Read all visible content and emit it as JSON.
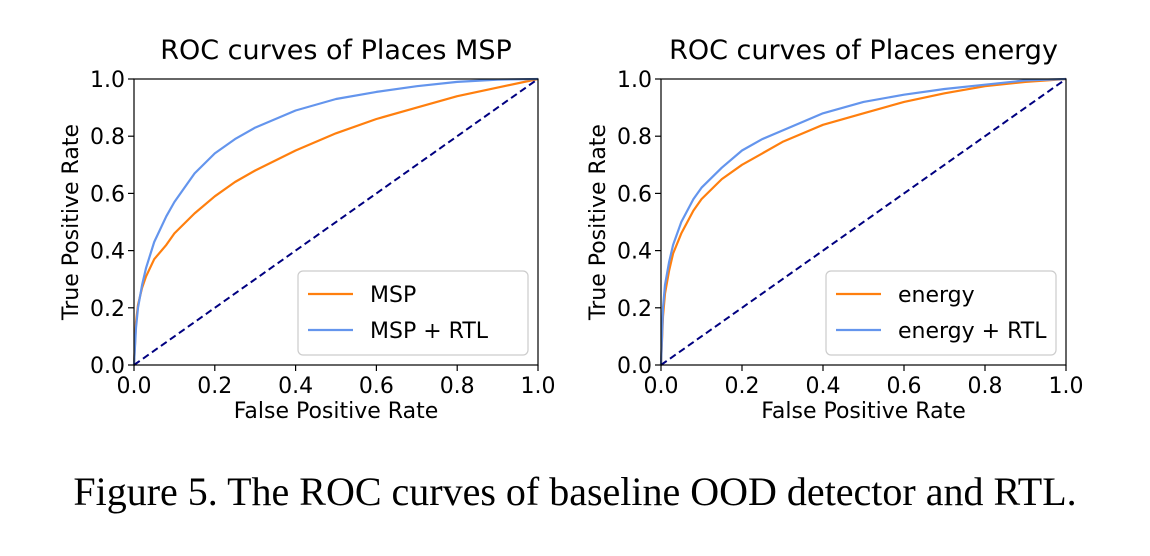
{
  "caption": "Figure 5. The ROC curves of baseline OOD detector and RTL.",
  "chart_data": [
    {
      "type": "line",
      "title": "ROC curves of Places MSP",
      "xlabel": "False Positive Rate",
      "ylabel": "True Positive Rate",
      "xlim": [
        0.0,
        1.0
      ],
      "ylim": [
        0.0,
        1.0
      ],
      "xticks": [
        "0.0",
        "0.2",
        "0.4",
        "0.6",
        "0.8",
        "1.0"
      ],
      "yticks": [
        "0.0",
        "0.2",
        "0.4",
        "0.6",
        "0.8",
        "1.0"
      ],
      "grid": false,
      "legend_position": "lower-right",
      "series": [
        {
          "name": "MSP",
          "color": "#ff7f0e",
          "x": [
            0,
            0.005,
            0.01,
            0.02,
            0.03,
            0.05,
            0.08,
            0.1,
            0.15,
            0.2,
            0.25,
            0.3,
            0.4,
            0.5,
            0.6,
            0.7,
            0.8,
            0.9,
            1.0
          ],
          "y": [
            0,
            0.15,
            0.21,
            0.27,
            0.31,
            0.37,
            0.42,
            0.46,
            0.53,
            0.59,
            0.64,
            0.68,
            0.75,
            0.81,
            0.86,
            0.9,
            0.94,
            0.97,
            1.0
          ]
        },
        {
          "name": "MSP + RTL",
          "color": "#6495ed",
          "x": [
            0,
            0.005,
            0.01,
            0.02,
            0.03,
            0.05,
            0.08,
            0.1,
            0.12,
            0.15,
            0.2,
            0.25,
            0.3,
            0.4,
            0.5,
            0.6,
            0.7,
            0.8,
            0.9,
            1.0
          ],
          "y": [
            0,
            0.13,
            0.2,
            0.28,
            0.34,
            0.43,
            0.52,
            0.57,
            0.61,
            0.67,
            0.74,
            0.79,
            0.83,
            0.89,
            0.93,
            0.955,
            0.975,
            0.99,
            0.998,
            1.0
          ]
        },
        {
          "name": "",
          "color": "#000080",
          "dashed": true,
          "x": [
            0,
            1
          ],
          "y": [
            0,
            1
          ]
        }
      ]
    },
    {
      "type": "line",
      "title": "ROC curves of Places energy",
      "xlabel": "False Positive Rate",
      "ylabel": "True Positive Rate",
      "xlim": [
        0.0,
        1.0
      ],
      "ylim": [
        0.0,
        1.0
      ],
      "xticks": [
        "0.0",
        "0.2",
        "0.4",
        "0.6",
        "0.8",
        "1.0"
      ],
      "yticks": [
        "0.0",
        "0.2",
        "0.4",
        "0.6",
        "0.8",
        "1.0"
      ],
      "grid": false,
      "legend_position": "lower-right",
      "series": [
        {
          "name": "energy",
          "color": "#ff7f0e",
          "x": [
            0,
            0.005,
            0.01,
            0.02,
            0.03,
            0.05,
            0.08,
            0.1,
            0.15,
            0.2,
            0.25,
            0.3,
            0.4,
            0.5,
            0.6,
            0.7,
            0.8,
            0.9,
            1.0
          ],
          "y": [
            0,
            0.17,
            0.25,
            0.33,
            0.39,
            0.46,
            0.54,
            0.58,
            0.65,
            0.7,
            0.74,
            0.78,
            0.84,
            0.88,
            0.92,
            0.95,
            0.975,
            0.99,
            1.0
          ]
        },
        {
          "name": "energy + RTL",
          "color": "#6495ed",
          "x": [
            0,
            0.005,
            0.01,
            0.02,
            0.03,
            0.05,
            0.08,
            0.1,
            0.15,
            0.2,
            0.25,
            0.3,
            0.4,
            0.5,
            0.6,
            0.7,
            0.8,
            0.9,
            1.0
          ],
          "y": [
            0,
            0.2,
            0.28,
            0.36,
            0.42,
            0.5,
            0.58,
            0.62,
            0.69,
            0.75,
            0.79,
            0.82,
            0.88,
            0.92,
            0.945,
            0.965,
            0.98,
            0.995,
            1.0
          ]
        },
        {
          "name": "",
          "color": "#000080",
          "dashed": true,
          "x": [
            0,
            1
          ],
          "y": [
            0,
            1
          ]
        }
      ]
    }
  ]
}
